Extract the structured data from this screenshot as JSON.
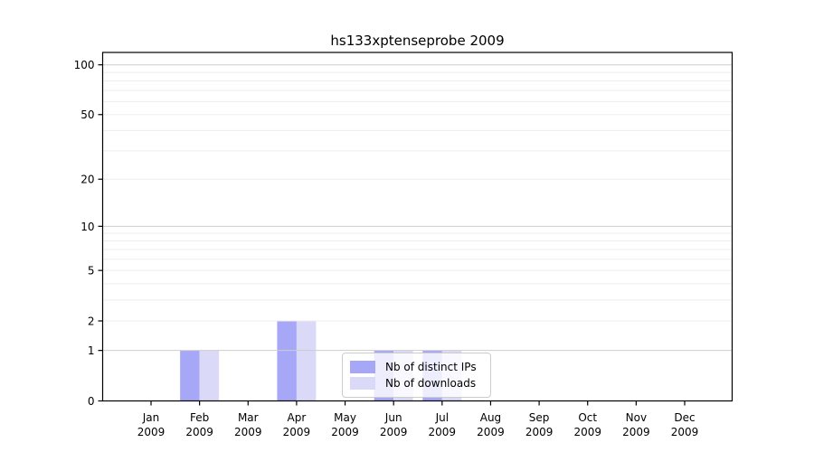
{
  "chart_data": {
    "type": "bar",
    "title": "hs133xptenseprobe 2009",
    "categories": [
      "Jan",
      "Feb",
      "Mar",
      "Apr",
      "May",
      "Jun",
      "Jul",
      "Aug",
      "Sep",
      "Oct",
      "Nov",
      "Dec"
    ],
    "x_sublabel": "2009",
    "series": [
      {
        "name": "Nb of distinct IPs",
        "color": "#a7a7f7",
        "values": [
          0,
          1,
          0,
          2,
          0,
          1,
          1,
          0,
          0,
          0,
          0,
          0
        ]
      },
      {
        "name": "Nb of downloads",
        "color": "#dadaf8",
        "values": [
          0,
          1,
          0,
          2,
          0,
          1,
          1,
          0,
          0,
          0,
          0,
          0
        ]
      }
    ],
    "y_scale": "log1p",
    "ylim": [
      0,
      100
    ],
    "y_tick_labels": [
      0,
      1,
      2,
      5,
      10,
      20,
      50,
      100
    ],
    "y_gridlines_major": [
      1,
      10,
      100
    ],
    "y_gridlines_minor": [
      2,
      3,
      4,
      5,
      6,
      7,
      8,
      9,
      20,
      30,
      40,
      50,
      60,
      70,
      80,
      90
    ],
    "grid": true,
    "legend_position": "inside-bottom-center",
    "axis_color": "#000000",
    "grid_major_color": "#cdcdcd",
    "grid_minor_color": "#ededed",
    "background_color": "#ffffff"
  }
}
